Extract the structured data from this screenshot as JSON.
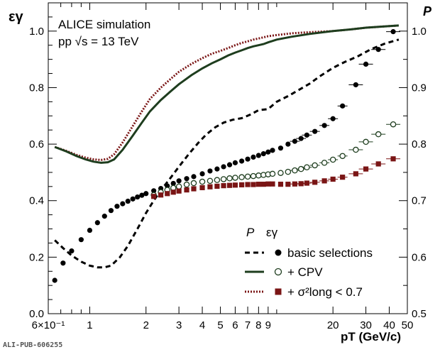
{
  "figure": {
    "label_top": "ALICE simulation",
    "label_bottom": "pp  √s = 13 TeV",
    "footer_id": "ALI-PUB-606255"
  },
  "chart_data": {
    "type": "scatter",
    "xscale": "log",
    "xlim": [
      0.6,
      50
    ],
    "ylim": [
      0,
      1.1
    ],
    "y2lim": [
      0.5,
      1.05
    ],
    "ylabel": "εγ",
    "y2label": "P",
    "xlabel": "pT (GeV/c)",
    "x_tick_labels": [
      "6×10⁻¹",
      "1",
      "2",
      "3",
      "4",
      "5",
      "6",
      "7",
      "8",
      "9",
      "20",
      "30",
      "40",
      "50"
    ],
    "y_tick_labels": [
      "0.0",
      "0.2",
      "0.4",
      "0.6",
      "0.8",
      "1.0"
    ],
    "y2_tick_labels": [
      "0.5",
      "0.6",
      "0.7",
      "0.8",
      "0.9",
      "1.0"
    ],
    "legend": {
      "header_purity": "P",
      "header_eff": "εγ",
      "entries": [
        "basic selections",
        "+ CPV",
        "+ σ²long < 0.7"
      ]
    },
    "colors": {
      "basic": "#000000",
      "cpv": "#1e3d1e",
      "sigma": "#7a1515"
    },
    "series": [
      {
        "name": "basic selections",
        "kind": "efficiency",
        "marker": "filled-circle",
        "x": [
          0.65,
          0.72,
          0.8,
          0.9,
          1.0,
          1.1,
          1.2,
          1.3,
          1.4,
          1.5,
          1.6,
          1.7,
          1.8,
          1.9,
          2.0,
          2.2,
          2.4,
          2.6,
          2.8,
          3.0,
          3.3,
          3.6,
          4.0,
          4.4,
          4.8,
          5.2,
          5.6,
          6.0,
          6.5,
          7.0,
          7.5,
          8.0,
          8.5,
          9.0,
          9.5,
          10.5,
          11.5,
          12.5,
          13.5,
          14.5,
          16.0,
          18.0,
          20.0,
          22.5,
          26.5,
          30.0,
          35.0,
          42.0
        ],
        "y": [
          0.118,
          0.179,
          0.222,
          0.262,
          0.295,
          0.322,
          0.345,
          0.365,
          0.38,
          0.389,
          0.398,
          0.406,
          0.413,
          0.419,
          0.425,
          0.435,
          0.443,
          0.452,
          0.461,
          0.47,
          0.478,
          0.485,
          0.495,
          0.505,
          0.512,
          0.52,
          0.527,
          0.534,
          0.54,
          0.547,
          0.554,
          0.56,
          0.566,
          0.572,
          0.578,
          0.586,
          0.6,
          0.61,
          0.62,
          0.632,
          0.645,
          0.666,
          0.69,
          0.735,
          0.81,
          0.883,
          0.935,
          0.998
        ]
      },
      {
        "name": "+ CPV",
        "kind": "efficiency",
        "marker": "open-circle",
        "x": [
          2.2,
          2.4,
          2.6,
          2.8,
          3.0,
          3.3,
          3.6,
          4.0,
          4.4,
          4.8,
          5.2,
          5.6,
          6.0,
          6.5,
          7.0,
          7.5,
          8.0,
          8.5,
          9.0,
          9.5,
          10.5,
          11.5,
          12.5,
          13.5,
          14.5,
          16.0,
          18.0,
          20.0,
          22.5,
          26.5,
          30.0,
          35.0,
          42.0
        ],
        "y": [
          0.42,
          0.43,
          0.438,
          0.445,
          0.45,
          0.457,
          0.462,
          0.467,
          0.47,
          0.473,
          0.476,
          0.479,
          0.481,
          0.483,
          0.485,
          0.487,
          0.489,
          0.491,
          0.493,
          0.495,
          0.498,
          0.502,
          0.507,
          0.512,
          0.518,
          0.525,
          0.534,
          0.545,
          0.558,
          0.58,
          0.608,
          0.635,
          0.67
        ]
      },
      {
        "name": "+ σ²long < 0.7",
        "kind": "efficiency",
        "marker": "filled-square",
        "x": [
          2.2,
          2.4,
          2.6,
          2.8,
          3.0,
          3.3,
          3.6,
          4.0,
          4.4,
          4.8,
          5.2,
          5.6,
          6.0,
          6.5,
          7.0,
          7.5,
          8.0,
          8.5,
          9.0,
          9.5,
          10.5,
          11.5,
          12.5,
          13.5,
          14.5,
          16.0,
          18.0,
          20.0,
          22.5,
          26.5,
          30.0,
          35.0,
          42.0
        ],
        "y": [
          0.415,
          0.42,
          0.425,
          0.43,
          0.434,
          0.438,
          0.442,
          0.446,
          0.449,
          0.451,
          0.453,
          0.454,
          0.455,
          0.456,
          0.457,
          0.457,
          0.458,
          0.458,
          0.459,
          0.459,
          0.458,
          0.458,
          0.459,
          0.46,
          0.462,
          0.465,
          0.47,
          0.476,
          0.483,
          0.495,
          0.512,
          0.53,
          0.548
        ]
      },
      {
        "name": "basic selections",
        "kind": "purity",
        "line": "dashed",
        "x": [
          0.65,
          0.72,
          0.8,
          0.9,
          1.0,
          1.1,
          1.2,
          1.3,
          1.45,
          1.6,
          1.8,
          2.0,
          2.2,
          2.4,
          2.7,
          3.0,
          3.4,
          3.8,
          4.2,
          4.7,
          5.2,
          5.8,
          6.5,
          7.2,
          8.0,
          9.0,
          10.0,
          11.5,
          13.0,
          15.0,
          17.0,
          20.0,
          23.0,
          27.0,
          32.0,
          38.0,
          45.0
        ],
        "y": [
          0.63,
          0.616,
          0.603,
          0.592,
          0.585,
          0.582,
          0.582,
          0.585,
          0.6,
          0.62,
          0.65,
          0.678,
          0.7,
          0.718,
          0.74,
          0.76,
          0.783,
          0.802,
          0.817,
          0.83,
          0.838,
          0.843,
          0.846,
          0.852,
          0.86,
          0.862,
          0.875,
          0.885,
          0.895,
          0.907,
          0.92,
          0.935,
          0.945,
          0.955,
          0.968,
          0.978,
          0.985
        ]
      },
      {
        "name": "+ CPV",
        "kind": "purity",
        "line": "solid",
        "x": [
          0.65,
          0.75,
          0.85,
          0.95,
          1.05,
          1.15,
          1.25,
          1.35,
          1.5,
          1.7,
          1.9,
          2.1,
          2.4,
          2.7,
          3.0,
          3.5,
          4.0,
          4.5,
          5.0,
          5.5,
          6.0,
          6.5,
          7.0,
          7.5,
          8.0,
          8.5,
          9.0,
          10.0,
          12.0,
          15.0,
          20.0,
          25.0,
          30.0,
          37.0,
          45.0
        ],
        "y": [
          0.795,
          0.787,
          0.779,
          0.773,
          0.769,
          0.767,
          0.768,
          0.773,
          0.79,
          0.815,
          0.838,
          0.858,
          0.878,
          0.893,
          0.906,
          0.922,
          0.934,
          0.943,
          0.95,
          0.957,
          0.962,
          0.966,
          0.97,
          0.973,
          0.975,
          0.977,
          0.98,
          0.985,
          0.99,
          0.995,
          1.0,
          1.003,
          1.006,
          1.008,
          1.01
        ]
      },
      {
        "name": "+ σ²long < 0.7",
        "kind": "purity",
        "line": "dotted",
        "x": [
          0.65,
          0.75,
          0.85,
          0.95,
          1.05,
          1.15,
          1.25,
          1.35,
          1.5,
          1.7,
          1.9,
          2.1,
          2.4,
          2.7,
          3.0,
          3.5,
          4.0,
          4.5,
          5.0,
          5.5,
          6.0,
          6.5,
          7.0,
          7.5,
          8.0,
          8.5,
          9.0,
          10.0,
          12.0,
          15.0,
          20.0,
          25.0,
          30.0,
          37.0,
          45.0
        ],
        "y": [
          0.795,
          0.788,
          0.781,
          0.776,
          0.773,
          0.772,
          0.774,
          0.782,
          0.803,
          0.832,
          0.858,
          0.88,
          0.9,
          0.915,
          0.928,
          0.942,
          0.952,
          0.96,
          0.965,
          0.97,
          0.975,
          0.979,
          0.982,
          0.985,
          0.987,
          0.989,
          0.991,
          0.993,
          0.996,
          0.998,
          1.0,
          1.003,
          1.006,
          1.008,
          1.01
        ]
      }
    ]
  }
}
